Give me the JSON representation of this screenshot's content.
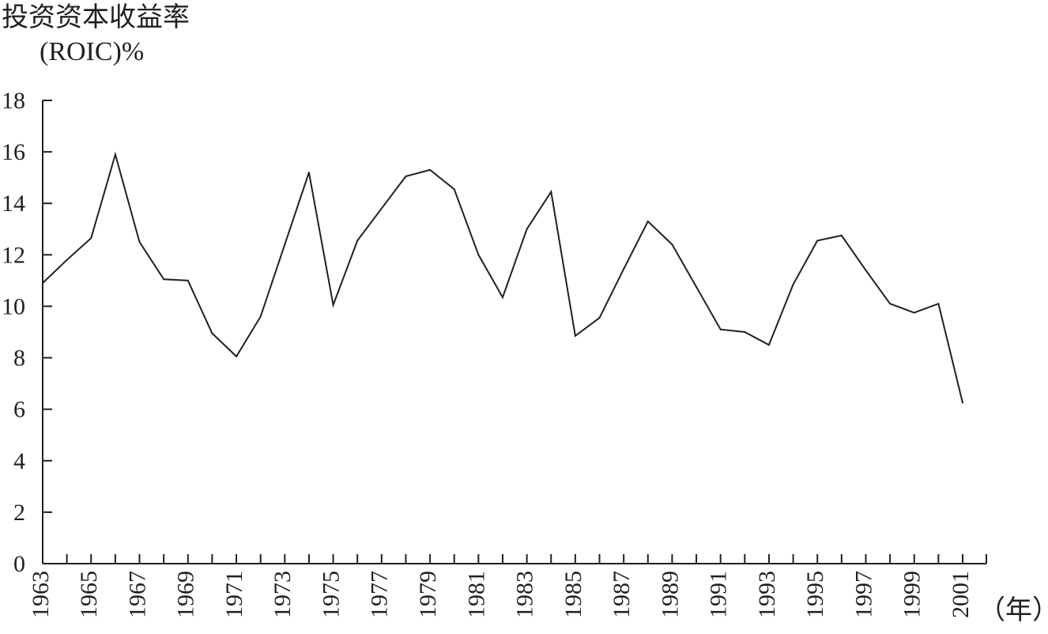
{
  "chart_data": {
    "type": "line",
    "ylabel_line1": "投资资本收益率",
    "ylabel_line2": "(ROIC)%",
    "xlabel": "（年）",
    "ylim": [
      0,
      18
    ],
    "yticks": [
      0,
      2,
      4,
      6,
      8,
      10,
      12,
      14,
      16,
      18
    ],
    "xlim": [
      1963,
      2001
    ],
    "xtick_labels": [
      "1963",
      "1965",
      "1967",
      "1969",
      "1971",
      "1973",
      "1975",
      "1977",
      "1979",
      "1981",
      "1983",
      "1985",
      "1987",
      "1989",
      "1991",
      "1993",
      "1995",
      "1997",
      "1999",
      "2001"
    ],
    "grid": false,
    "x": [
      1963,
      1964,
      1965,
      1966,
      1967,
      1968,
      1969,
      1970,
      1971,
      1972,
      1973,
      1974,
      1975,
      1976,
      1977,
      1978,
      1979,
      1980,
      1981,
      1982,
      1983,
      1984,
      1985,
      1986,
      1987,
      1988,
      1989,
      1990,
      1991,
      1992,
      1993,
      1994,
      1995,
      1996,
      1997,
      1998,
      1999,
      2000,
      2001
    ],
    "series": [
      {
        "values": [
          10.9,
          11.8,
          12.65,
          15.9,
          12.5,
          11.05,
          11.0,
          8.95,
          8.05,
          9.6,
          12.4,
          15.2,
          10.05,
          12.55,
          13.8,
          15.05,
          15.3,
          14.55,
          12.0,
          10.35,
          13.0,
          14.45,
          8.85,
          9.55,
          11.45,
          13.3,
          12.4,
          10.75,
          9.1,
          9.0,
          8.5,
          10.85,
          12.55,
          12.75,
          11.4,
          10.1,
          9.75,
          10.1,
          6.25
        ]
      }
    ]
  }
}
